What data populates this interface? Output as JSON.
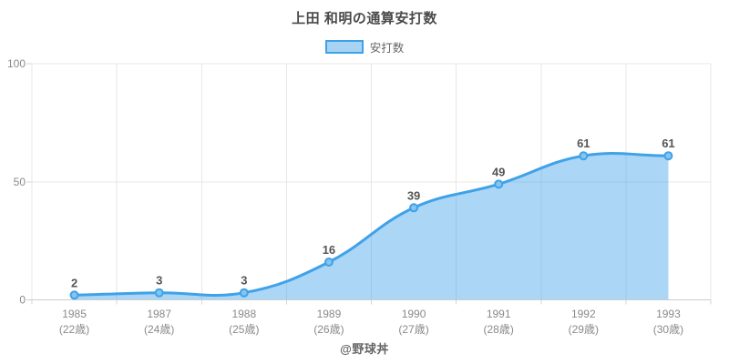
{
  "chart": {
    "title": "上田 和明の通算安打数",
    "legend_label": "安打数",
    "footer": "@野球丼"
  },
  "chart_data": {
    "type": "area",
    "title": "上田 和明の通算安打数",
    "series_name": "安打数",
    "categories": [
      {
        "year": "1985",
        "age": "(22歳)"
      },
      {
        "year": "1987",
        "age": "(24歳)"
      },
      {
        "year": "1988",
        "age": "(25歳)"
      },
      {
        "year": "1989",
        "age": "(26歳)"
      },
      {
        "year": "1990",
        "age": "(27歳)"
      },
      {
        "year": "1991",
        "age": "(28歳)"
      },
      {
        "year": "1992",
        "age": "(29歳)"
      },
      {
        "year": "1993",
        "age": "(30歳)"
      }
    ],
    "values": [
      2,
      3,
      3,
      16,
      39,
      49,
      61,
      61
    ],
    "ylim": [
      0,
      100
    ],
    "yticks": [
      0,
      50,
      100
    ],
    "grid": true,
    "legend_position": "top",
    "curve": "smooth",
    "colors": {
      "line": "#3fa2e8",
      "fill": "rgba(63,162,232,0.44)",
      "marker_fill": "#85c4ef",
      "legend_fill": "#a8d4f3",
      "grid": "#e7e7e7",
      "axis_line": "#cccccc",
      "tick": "#d6d6d6",
      "tick_label": "#8a8a8a",
      "data_label": "#555555",
      "title": "#4a4a4a",
      "legend_text": "#666666",
      "footer_text": "#666666"
    }
  }
}
